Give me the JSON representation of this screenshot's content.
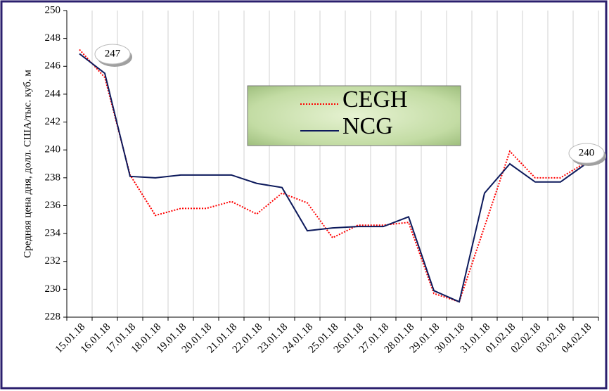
{
  "chart_data": {
    "type": "line",
    "y_label": "Средняя цена дня, долл. США/тыс. куб. м",
    "categories": [
      "15.01.18",
      "16.01.18",
      "17.01.18",
      "18.01.18",
      "19.01.18",
      "20.01.18",
      "21.01.18",
      "22.01.18",
      "23.01.18",
      "24.01.18",
      "25.01.18",
      "26.01.18",
      "27.01.18",
      "28.01.18",
      "29.01.18",
      "30.01.18",
      "31.01.18",
      "01.02.18",
      "02.02.18",
      "03.02.18",
      "04.02.18"
    ],
    "series": [
      {
        "name": "CEGH",
        "color": "#ff0000",
        "values": [
          247.2,
          245.2,
          238.2,
          235.3,
          235.8,
          235.8,
          236.3,
          235.4,
          236.9,
          236.2,
          233.7,
          234.6,
          234.6,
          234.8,
          229.7,
          229.1,
          234.5,
          239.9,
          238.0,
          238.0,
          239.1
        ]
      },
      {
        "name": "NCG",
        "color": "#0d1a5c",
        "values": [
          246.9,
          245.5,
          238.1,
          238.0,
          238.2,
          238.2,
          238.2,
          237.6,
          237.3,
          234.2,
          234.4,
          234.5,
          234.5,
          235.2,
          229.9,
          229.1,
          236.9,
          239.0,
          237.7,
          237.7,
          239.0
        ]
      }
    ],
    "annotations": [
      "247",
      "240"
    ],
    "ylim": [
      228,
      250
    ],
    "yticks": [
      228,
      230,
      232,
      234,
      236,
      238,
      240,
      242,
      244,
      246,
      248,
      250
    ],
    "grid": true
  }
}
